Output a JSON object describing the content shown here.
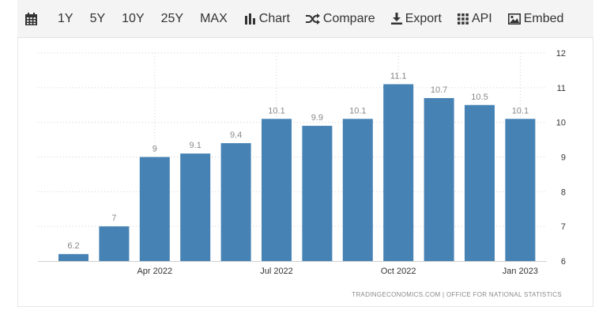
{
  "toolbar": {
    "icons": {
      "calendar": "calendar-icon",
      "chart": "bar-chart-icon",
      "compare": "shuffle-icon",
      "export": "download-icon",
      "api": "grid-icon",
      "embed": "image-icon"
    },
    "ranges": [
      "1Y",
      "5Y",
      "10Y",
      "25Y",
      "MAX"
    ],
    "chart_label": "Chart",
    "compare_label": "Compare",
    "export_label": "Export",
    "api_label": "API",
    "embed_label": "Embed"
  },
  "colors": {
    "bar": "#4682b4",
    "grid": "#d0d0d0",
    "label": "#888888",
    "axis": "#333333"
  },
  "footer": {
    "source": "TRADINGECONOMICS.COM  |  OFFICE FOR NATIONAL STATISTICS"
  },
  "chart_data": {
    "type": "bar",
    "categories": [
      "Feb 2022",
      "Mar 2022",
      "Apr 2022",
      "May 2022",
      "Jun 2022",
      "Jul 2022",
      "Aug 2022",
      "Sep 2022",
      "Oct 2022",
      "Nov 2022",
      "Dec 2022",
      "Jan 2023"
    ],
    "values": [
      6.2,
      7,
      9,
      9.1,
      9.4,
      10.1,
      9.9,
      10.1,
      11.1,
      10.7,
      10.5,
      10.1
    ],
    "data_labels": [
      "6.2",
      "7",
      "9",
      "9.1",
      "9.4",
      "10.1",
      "9.9",
      "10.1",
      "11.1",
      "10.7",
      "10.5",
      "10.1"
    ],
    "x_tick_labels": [
      {
        "category": "Apr 2022",
        "label": "Apr 2022"
      },
      {
        "category": "Jul 2022",
        "label": "Jul 2022"
      },
      {
        "category": "Oct 2022",
        "label": "Oct 2022"
      },
      {
        "category": "Jan 2023",
        "label": "Jan 2023"
      }
    ],
    "y_ticks": [
      6,
      7,
      8,
      9,
      10,
      11,
      12
    ],
    "ylim": [
      6,
      12
    ],
    "y_axis_position": "right",
    "grid": true,
    "title": "",
    "xlabel": "",
    "ylabel": ""
  }
}
